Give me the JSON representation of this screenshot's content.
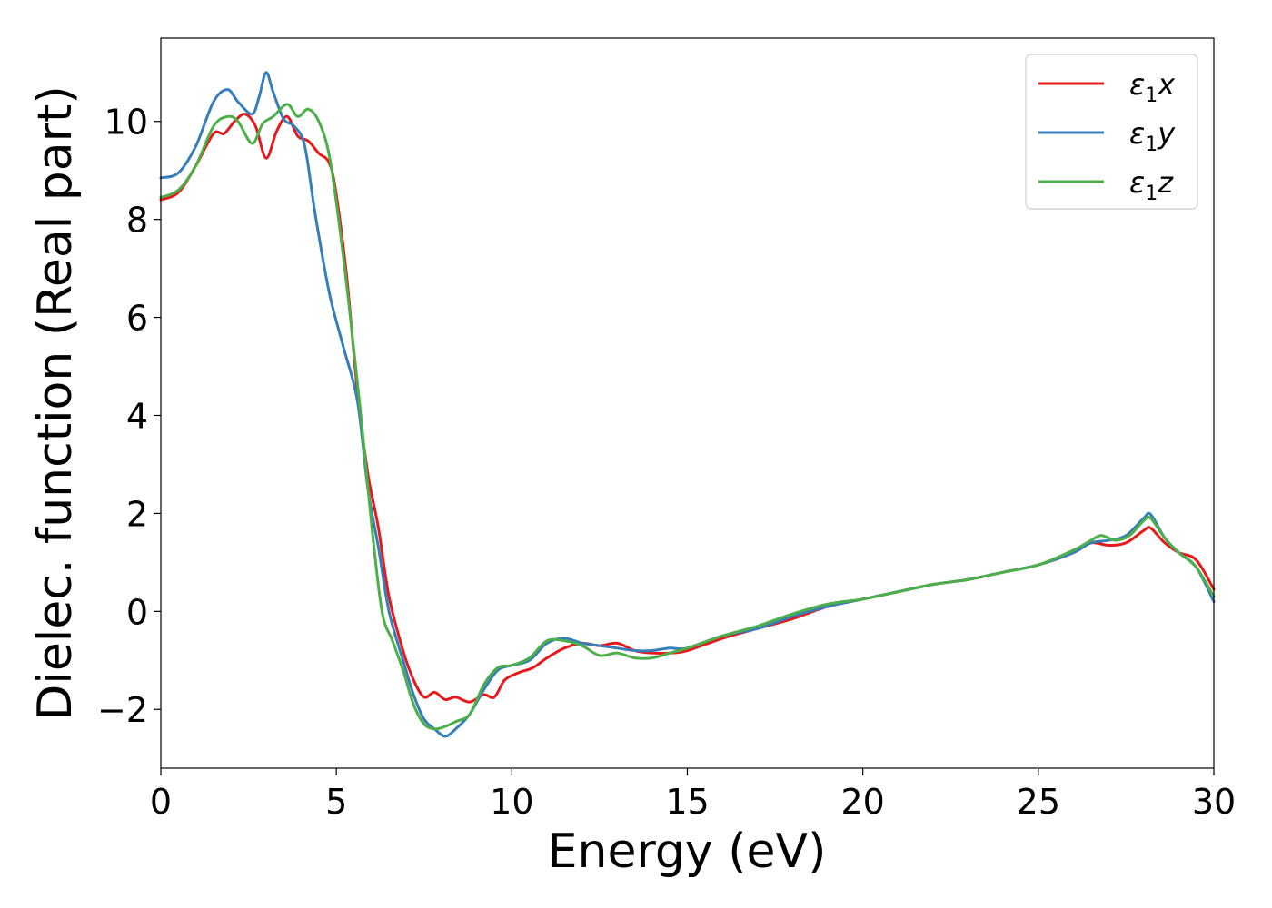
{
  "chart_data": {
    "type": "line",
    "xlabel": "Energy (eV)",
    "ylabel": "Dielec. function (Real part)",
    "xlim": [
      0,
      30
    ],
    "ylim": [
      -3.2,
      11.7
    ],
    "xticks": [
      0,
      5,
      10,
      15,
      20,
      25,
      30
    ],
    "xtick_labels": [
      "0",
      "5",
      "10",
      "15",
      "20",
      "25",
      "30"
    ],
    "yticks": [
      -2,
      0,
      2,
      4,
      6,
      8,
      10
    ],
    "ytick_labels": [
      "−2",
      "0",
      "2",
      "4",
      "6",
      "8",
      "10"
    ],
    "grid": false,
    "legend_position": "top-right",
    "series": [
      {
        "name": "ε1x",
        "legend_symbol": "ε",
        "legend_sub": "1",
        "legend_var": "x",
        "color": "#e41a1c",
        "points": [
          [
            0,
            8.4
          ],
          [
            0.5,
            8.55
          ],
          [
            1.0,
            9.1
          ],
          [
            1.5,
            9.75
          ],
          [
            1.8,
            9.75
          ],
          [
            2.1,
            10.0
          ],
          [
            2.4,
            10.15
          ],
          [
            2.7,
            9.9
          ],
          [
            3.0,
            9.25
          ],
          [
            3.3,
            9.8
          ],
          [
            3.6,
            10.1
          ],
          [
            3.9,
            9.7
          ],
          [
            4.2,
            9.6
          ],
          [
            4.5,
            9.35
          ],
          [
            4.8,
            9.15
          ],
          [
            5.0,
            8.5
          ],
          [
            5.3,
            6.8
          ],
          [
            5.6,
            4.5
          ],
          [
            5.9,
            2.8
          ],
          [
            6.2,
            1.7
          ],
          [
            6.5,
            0.3
          ],
          [
            6.9,
            -0.8
          ],
          [
            7.2,
            -1.4
          ],
          [
            7.5,
            -1.75
          ],
          [
            7.8,
            -1.65
          ],
          [
            8.1,
            -1.8
          ],
          [
            8.4,
            -1.75
          ],
          [
            8.8,
            -1.85
          ],
          [
            9.2,
            -1.7
          ],
          [
            9.5,
            -1.75
          ],
          [
            9.8,
            -1.4
          ],
          [
            10.2,
            -1.25
          ],
          [
            10.6,
            -1.15
          ],
          [
            11.0,
            -0.95
          ],
          [
            11.5,
            -0.75
          ],
          [
            12.0,
            -0.65
          ],
          [
            12.5,
            -0.7
          ],
          [
            13.0,
            -0.65
          ],
          [
            13.5,
            -0.8
          ],
          [
            14.0,
            -0.85
          ],
          [
            14.5,
            -0.85
          ],
          [
            15.0,
            -0.8
          ],
          [
            16.0,
            -0.55
          ],
          [
            17.0,
            -0.35
          ],
          [
            18.0,
            -0.15
          ],
          [
            19.0,
            0.1
          ],
          [
            20.0,
            0.25
          ],
          [
            21.0,
            0.4
          ],
          [
            22.0,
            0.55
          ],
          [
            23.0,
            0.65
          ],
          [
            24.0,
            0.8
          ],
          [
            25.0,
            0.95
          ],
          [
            26.0,
            1.2
          ],
          [
            26.5,
            1.4
          ],
          [
            27.0,
            1.35
          ],
          [
            27.5,
            1.4
          ],
          [
            28.0,
            1.65
          ],
          [
            28.2,
            1.7
          ],
          [
            28.6,
            1.4
          ],
          [
            29.0,
            1.2
          ],
          [
            29.5,
            1.05
          ],
          [
            30.0,
            0.45
          ]
        ]
      },
      {
        "name": "ε1y",
        "legend_symbol": "ε",
        "legend_sub": "1",
        "legend_var": "y",
        "color": "#377eb8",
        "points": [
          [
            0,
            8.85
          ],
          [
            0.5,
            8.95
          ],
          [
            1.0,
            9.5
          ],
          [
            1.5,
            10.4
          ],
          [
            1.9,
            10.65
          ],
          [
            2.2,
            10.4
          ],
          [
            2.6,
            10.15
          ],
          [
            2.8,
            10.5
          ],
          [
            3.0,
            11.0
          ],
          [
            3.2,
            10.6
          ],
          [
            3.5,
            10.05
          ],
          [
            3.8,
            9.9
          ],
          [
            4.1,
            9.5
          ],
          [
            4.4,
            8.1
          ],
          [
            4.8,
            6.5
          ],
          [
            5.2,
            5.4
          ],
          [
            5.6,
            4.3
          ],
          [
            5.9,
            2.5
          ],
          [
            6.2,
            1.3
          ],
          [
            6.5,
            0.0
          ],
          [
            6.9,
            -1.0
          ],
          [
            7.2,
            -1.7
          ],
          [
            7.5,
            -2.2
          ],
          [
            7.8,
            -2.4
          ],
          [
            8.1,
            -2.55
          ],
          [
            8.4,
            -2.4
          ],
          [
            8.8,
            -2.1
          ],
          [
            9.2,
            -1.6
          ],
          [
            9.6,
            -1.2
          ],
          [
            10.0,
            -1.1
          ],
          [
            10.5,
            -1.0
          ],
          [
            11.0,
            -0.65
          ],
          [
            11.5,
            -0.55
          ],
          [
            12.0,
            -0.65
          ],
          [
            12.5,
            -0.7
          ],
          [
            13.0,
            -0.75
          ],
          [
            13.5,
            -0.8
          ],
          [
            14.0,
            -0.8
          ],
          [
            14.5,
            -0.75
          ],
          [
            15.0,
            -0.75
          ],
          [
            16.0,
            -0.5
          ],
          [
            17.0,
            -0.35
          ],
          [
            18.0,
            -0.1
          ],
          [
            19.0,
            0.1
          ],
          [
            20.0,
            0.25
          ],
          [
            21.0,
            0.4
          ],
          [
            22.0,
            0.55
          ],
          [
            23.0,
            0.65
          ],
          [
            24.0,
            0.8
          ],
          [
            25.0,
            0.95
          ],
          [
            26.0,
            1.2
          ],
          [
            26.5,
            1.4
          ],
          [
            27.0,
            1.45
          ],
          [
            27.5,
            1.55
          ],
          [
            28.0,
            1.9
          ],
          [
            28.2,
            1.98
          ],
          [
            28.6,
            1.5
          ],
          [
            29.0,
            1.2
          ],
          [
            29.5,
            0.9
          ],
          [
            30.0,
            0.2
          ]
        ]
      },
      {
        "name": "ε1z",
        "legend_symbol": "ε",
        "legend_sub": "1",
        "legend_var": "z",
        "color": "#4daf4a",
        "points": [
          [
            0,
            8.45
          ],
          [
            0.5,
            8.6
          ],
          [
            1.0,
            9.1
          ],
          [
            1.5,
            9.9
          ],
          [
            1.9,
            10.1
          ],
          [
            2.2,
            10.0
          ],
          [
            2.6,
            9.55
          ],
          [
            2.9,
            9.95
          ],
          [
            3.2,
            10.1
          ],
          [
            3.6,
            10.35
          ],
          [
            3.9,
            10.1
          ],
          [
            4.2,
            10.25
          ],
          [
            4.5,
            10.0
          ],
          [
            4.8,
            9.3
          ],
          [
            5.1,
            7.8
          ],
          [
            5.4,
            6.0
          ],
          [
            5.7,
            4.0
          ],
          [
            6.0,
            1.8
          ],
          [
            6.3,
            0.0
          ],
          [
            6.6,
            -0.6
          ],
          [
            6.9,
            -1.2
          ],
          [
            7.2,
            -1.9
          ],
          [
            7.5,
            -2.3
          ],
          [
            7.8,
            -2.4
          ],
          [
            8.1,
            -2.35
          ],
          [
            8.4,
            -2.25
          ],
          [
            8.8,
            -2.1
          ],
          [
            9.2,
            -1.5
          ],
          [
            9.6,
            -1.15
          ],
          [
            10.0,
            -1.1
          ],
          [
            10.5,
            -0.95
          ],
          [
            11.0,
            -0.6
          ],
          [
            11.5,
            -0.6
          ],
          [
            12.0,
            -0.7
          ],
          [
            12.5,
            -0.9
          ],
          [
            13.0,
            -0.85
          ],
          [
            13.5,
            -0.95
          ],
          [
            14.0,
            -0.95
          ],
          [
            14.5,
            -0.85
          ],
          [
            15.0,
            -0.75
          ],
          [
            16.0,
            -0.5
          ],
          [
            17.0,
            -0.3
          ],
          [
            18.0,
            -0.05
          ],
          [
            19.0,
            0.15
          ],
          [
            20.0,
            0.25
          ],
          [
            21.0,
            0.4
          ],
          [
            22.0,
            0.55
          ],
          [
            23.0,
            0.65
          ],
          [
            24.0,
            0.8
          ],
          [
            25.0,
            0.95
          ],
          [
            26.0,
            1.25
          ],
          [
            26.5,
            1.45
          ],
          [
            26.8,
            1.55
          ],
          [
            27.2,
            1.45
          ],
          [
            27.6,
            1.55
          ],
          [
            28.0,
            1.85
          ],
          [
            28.2,
            1.9
          ],
          [
            28.6,
            1.5
          ],
          [
            29.0,
            1.2
          ],
          [
            29.5,
            0.9
          ],
          [
            30.0,
            0.3
          ]
        ]
      }
    ]
  }
}
